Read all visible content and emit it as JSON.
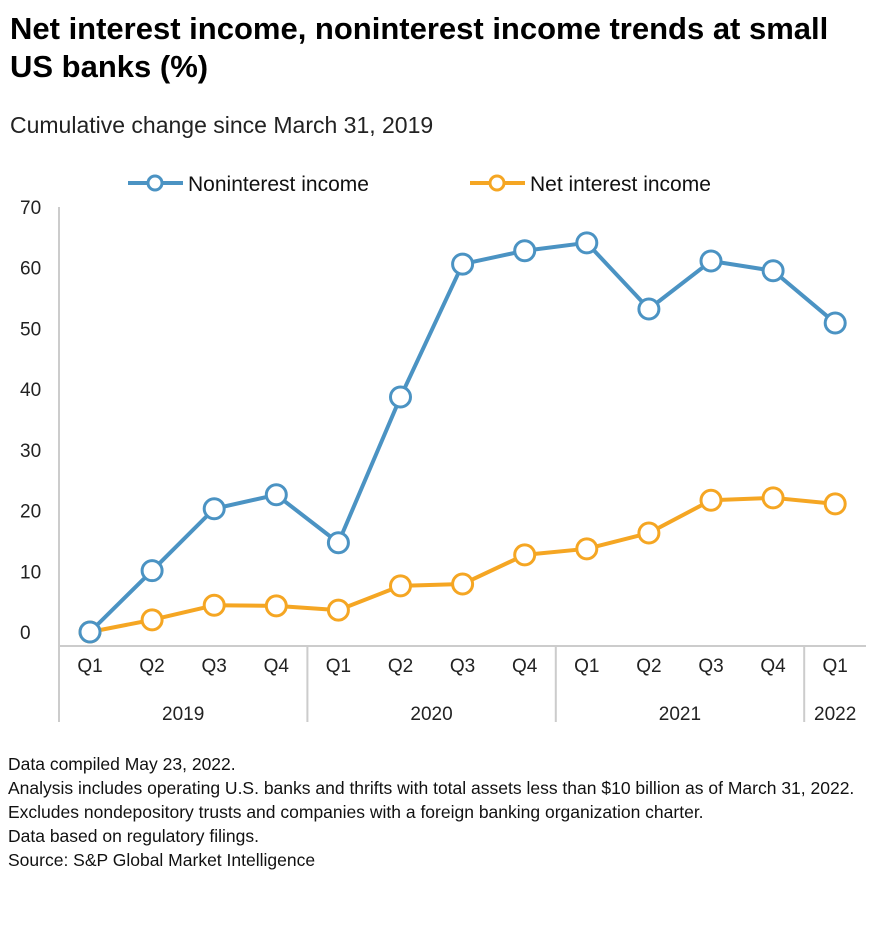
{
  "chart_data": {
    "type": "line",
    "title": "Net interest income, noninterest income trends at small US banks (%)",
    "subtitle": "Cumulative change since March 31, 2019",
    "categories": [
      "Q1",
      "Q2",
      "Q3",
      "Q4",
      "Q1",
      "Q2",
      "Q3",
      "Q4",
      "Q1",
      "Q2",
      "Q3",
      "Q4",
      "Q1"
    ],
    "years": [
      {
        "label": "2019",
        "span": 4
      },
      {
        "label": "2020",
        "span": 4
      },
      {
        "label": "2021",
        "span": 4
      },
      {
        "label": "2022",
        "span": 1
      }
    ],
    "yticks": [
      0,
      10,
      20,
      30,
      40,
      50,
      60,
      70
    ],
    "ylim": [
      0,
      70
    ],
    "legend_position": "top",
    "series": [
      {
        "name": "Noninterest income",
        "color": "#4b93c3",
        "values": [
          0,
          10.1,
          20.3,
          22.6,
          14.7,
          38.7,
          60.6,
          62.8,
          64.1,
          53.2,
          61.1,
          59.5,
          50.9
        ]
      },
      {
        "name": "Net interest income",
        "color": "#f5a623",
        "values": [
          0,
          2.0,
          4.4,
          4.3,
          3.6,
          7.6,
          7.9,
          12.7,
          13.7,
          16.3,
          21.7,
          22.1,
          21.1
        ]
      }
    ]
  },
  "notes": [
    "Data compiled May 23, 2022.",
    "Analysis includes operating U.S. banks and thrifts with total assets less than $10 billion as of March 31, 2022. Excludes nondepository trusts and companies with a foreign banking organization charter.",
    "Data based on regulatory filings.",
    "Source: S&P Global Market Intelligence"
  ]
}
